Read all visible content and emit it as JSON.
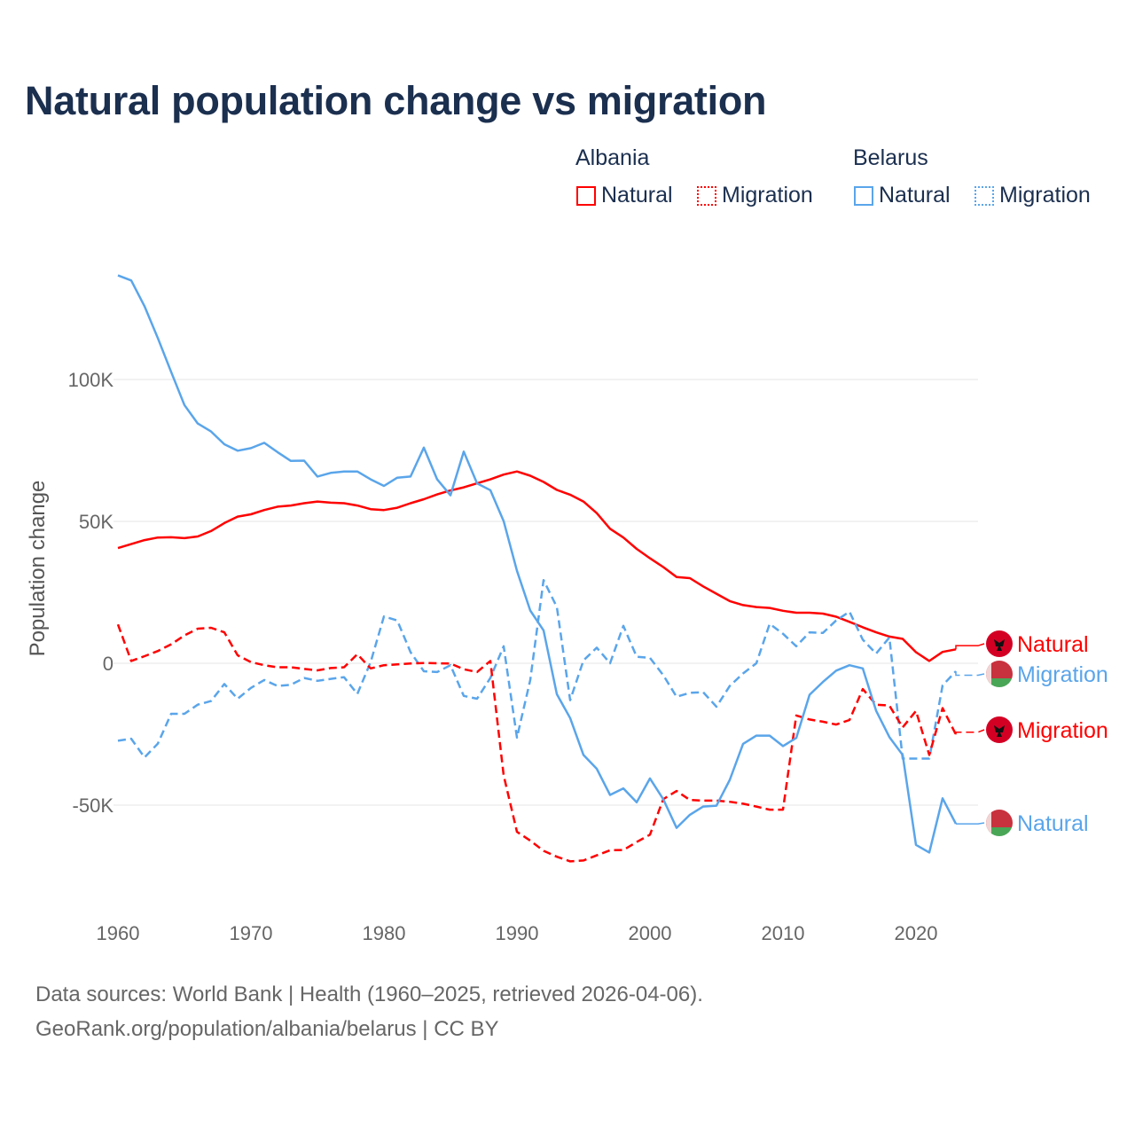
{
  "colors": {
    "albania": "#ff0000",
    "belarus": "#5aa5ea",
    "title": "#1b2f4f",
    "axis_text": "#666666",
    "grid": "#e6e6e6"
  },
  "legend": {
    "groups": [
      {
        "country": "Albania",
        "items": [
          {
            "label": "Natural",
            "style": "solid"
          },
          {
            "label": "Migration",
            "style": "dotted"
          }
        ]
      },
      {
        "country": "Belarus",
        "items": [
          {
            "label": "Natural",
            "style": "solid"
          },
          {
            "label": "Migration",
            "style": "dotted"
          }
        ]
      }
    ]
  },
  "footer": {
    "line1": "Data sources: World Bank | Health (1960–2025, retrieved 2026-04-06).",
    "line2": "GeoRank.org/population/albania/belarus | CC BY"
  },
  "chart_data": {
    "type": "line",
    "title": "Natural population change vs migration",
    "xlabel": "",
    "ylabel": "Population change",
    "xlim": [
      1960,
      2024.7
    ],
    "ylim": [
      -82000,
      150000
    ],
    "grid": true,
    "legend_placement": "top-right",
    "x_ticks": [
      1960,
      1970,
      1980,
      1990,
      2000,
      2010,
      2020
    ],
    "x_tick_labels": [
      "1960",
      "1970",
      "1980",
      "1990",
      "2000",
      "2010",
      "2020"
    ],
    "y_ticks": [
      100000,
      50000,
      0,
      -50000
    ],
    "y_tick_labels": [
      "100K",
      "50K",
      "0",
      "-50K"
    ],
    "x_start": 1960,
    "series": [
      {
        "name": "Albania Natural",
        "country": "Albania",
        "end_label": "Natural",
        "dash": "solid",
        "color": "#ff0000",
        "end_value": 6200,
        "values": [
          40600,
          42000,
          43400,
          44300,
          44400,
          44100,
          44700,
          46600,
          49400,
          51700,
          52500,
          54000,
          55200,
          55600,
          56400,
          57000,
          56600,
          56400,
          55600,
          54300,
          54000,
          54800,
          56400,
          57800,
          59500,
          60900,
          62000,
          63400,
          64800,
          66500,
          67600,
          66100,
          63900,
          61100,
          59400,
          57000,
          52900,
          47400,
          44300,
          40300,
          37000,
          33900,
          30400,
          30000,
          27100,
          24500,
          21900,
          20500,
          19800,
          19500,
          18500,
          17800,
          17800,
          17500,
          16400,
          14600,
          12700,
          10900,
          9400,
          8600,
          3900,
          800,
          4000,
          4900
        ]
      },
      {
        "name": "Belarus Migration",
        "country": "Belarus",
        "end_label": "Migration",
        "dash": "dashed",
        "color": "#5aa5ea",
        "end_value": -4200,
        "values": [
          -27300,
          -26600,
          -33200,
          -28300,
          -17800,
          -17800,
          -14600,
          -13300,
          -7300,
          -12500,
          -8700,
          -5900,
          -8000,
          -7600,
          -5200,
          -6200,
          -5500,
          -4900,
          -10800,
          400,
          16500,
          15100,
          3900,
          -2800,
          -3100,
          -700,
          -11500,
          -12500,
          -5200,
          6000,
          -26200,
          -5900,
          29300,
          19800,
          -13000,
          1000,
          5500,
          0,
          13200,
          2300,
          1900,
          -4200,
          -11800,
          -10400,
          -10200,
          -15300,
          -8000,
          -3600,
          0,
          13900,
          10400,
          6000,
          10900,
          10700,
          15100,
          18200,
          8300,
          3400,
          9100,
          -33600,
          -33600,
          -33600,
          -7800,
          -2800
        ]
      },
      {
        "name": "Albania Migration",
        "country": "Albania",
        "end_label": "Migration",
        "dash": "dashed",
        "color": "#ff0000",
        "end_value": -24300,
        "values": [
          13700,
          800,
          2500,
          4300,
          6700,
          9800,
          12200,
          12500,
          10900,
          2800,
          400,
          -700,
          -1400,
          -1400,
          -2000,
          -2500,
          -1700,
          -1400,
          3200,
          -1800,
          -700,
          -400,
          -100,
          100,
          0,
          -100,
          -2100,
          -3100,
          800,
          -39500,
          -59400,
          -62500,
          -66100,
          -68200,
          -69800,
          -69500,
          -67700,
          -65900,
          -65800,
          -63000,
          -60400,
          -47900,
          -45000,
          -48200,
          -48400,
          -48400,
          -48800,
          -49500,
          -50500,
          -51600,
          -51600,
          -18400,
          -19800,
          -20600,
          -21600,
          -20000,
          -9100,
          -14600,
          -14900,
          -22600,
          -16800,
          -32300,
          -15800,
          -25100
        ]
      },
      {
        "name": "Belarus Natural",
        "country": "Belarus",
        "end_label": "Natural",
        "dash": "solid",
        "color": "#5aa5ea",
        "end_value": -56600,
        "values": [
          136700,
          134900,
          125800,
          114600,
          102700,
          91000,
          84500,
          81700,
          77200,
          74900,
          75800,
          77700,
          74400,
          71300,
          71400,
          65800,
          67100,
          67600,
          67600,
          64800,
          62500,
          65400,
          65800,
          76000,
          64800,
          59200,
          74600,
          63400,
          61000,
          50100,
          32600,
          18600,
          11600,
          -10900,
          -19300,
          -32300,
          -37200,
          -46400,
          -44100,
          -49000,
          -40600,
          -47900,
          -58000,
          -53400,
          -50500,
          -50200,
          -41100,
          -28400,
          -25500,
          -25500,
          -29200,
          -26300,
          -11100,
          -6600,
          -2600,
          -700,
          -1800,
          -16700,
          -26000,
          -32300,
          -64000,
          -66700,
          -47600,
          -56600
        ]
      }
    ]
  }
}
